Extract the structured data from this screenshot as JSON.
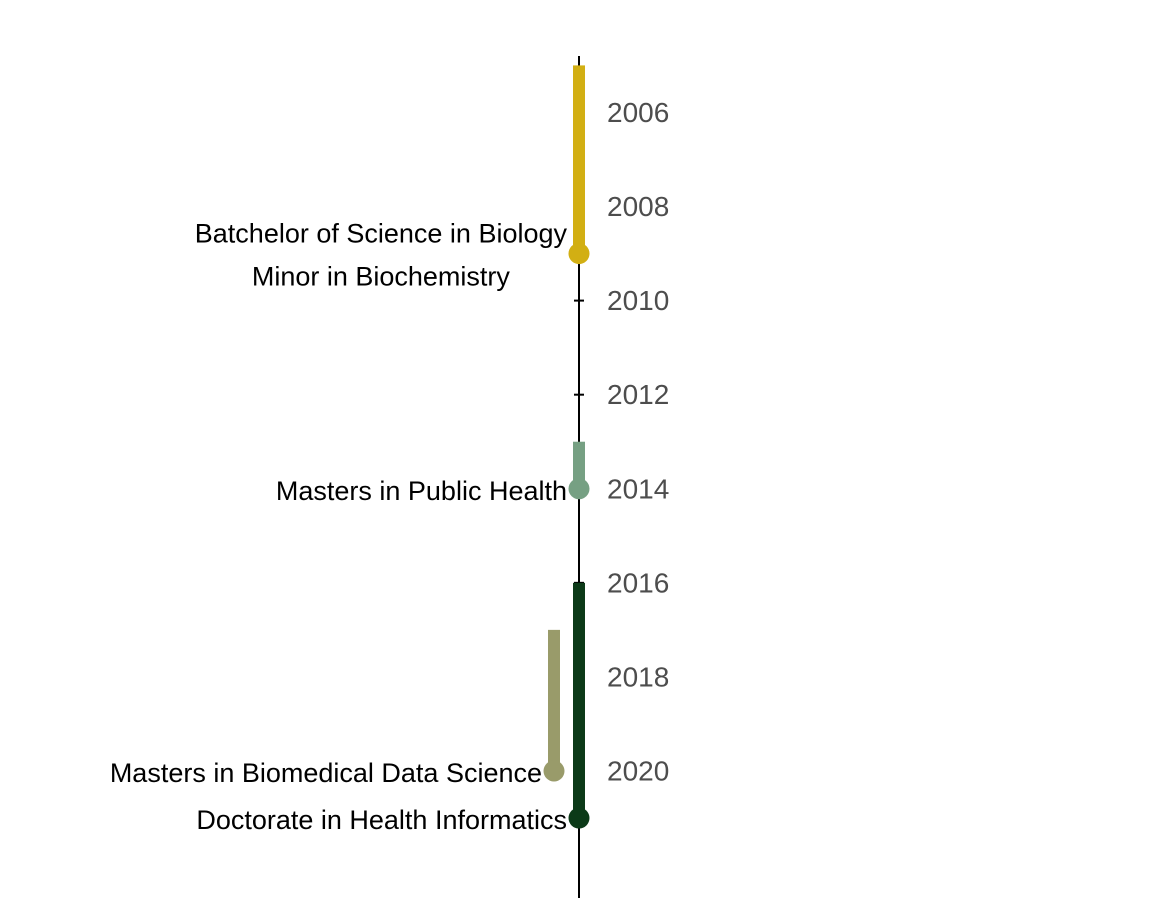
{
  "chart_data": {
    "type": "timeline",
    "title": "",
    "xlabel": "",
    "ylabel": "",
    "ylim": [
      2004.8,
      2022.7
    ],
    "yticks": [
      2006,
      2008,
      2010,
      2012,
      2014,
      2016,
      2018,
      2020
    ],
    "grid": false,
    "legend": "none",
    "events": [
      {
        "label": "Batchelor of Science in Biology",
        "sublabel": "Minor in Biochemistry",
        "start": 2005,
        "end": 2009,
        "color": "#D2AF13",
        "lane": 0
      },
      {
        "label": "Masters in Public Health",
        "start": 2013,
        "end": 2014,
        "color": "#76A083",
        "lane": 0
      },
      {
        "label": "Masters in Biomedical Data Science",
        "start": 2017,
        "end": 2020,
        "color": "#999B6A",
        "lane": 1
      },
      {
        "label": "Doctorate in Health Informatics",
        "start": 2016,
        "end": 2021,
        "color": "#0C3A18",
        "lane": 0
      }
    ]
  }
}
